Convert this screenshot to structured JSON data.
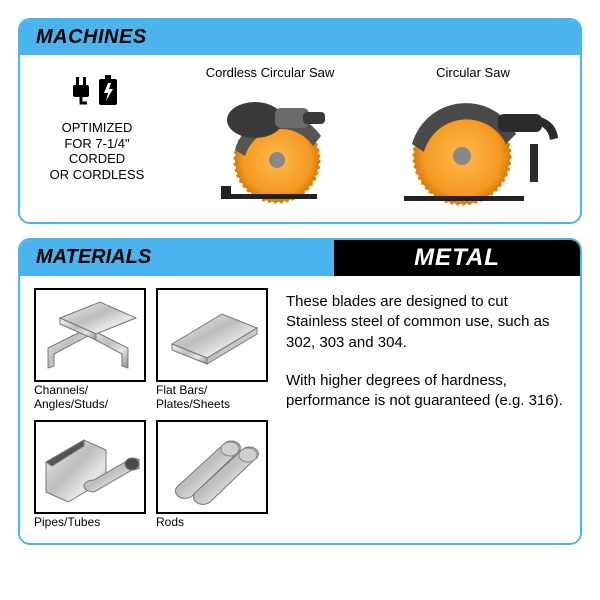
{
  "colors": {
    "panel_border": "#4bb4ef",
    "header_bg": "#4bb4ef",
    "header_text": "#000000",
    "metal_bg": "#000000",
    "metal_text": "#ffffff",
    "blade": "#f59a23",
    "blade_dark": "#d97f0a",
    "saw_body": "#3a3a3a",
    "saw_body_light": "#6b6b6b",
    "metal_light": "#e8e8e8",
    "metal_mid": "#b8b8b8",
    "metal_dark": "#7a7a7a"
  },
  "machines": {
    "title": "MACHINES",
    "optimized_lines": "OPTIMIZED\nFOR 7-1/4\"\nCORDED\nOR CORDLESS",
    "saws": [
      {
        "label": "Cordless Circular Saw"
      },
      {
        "label": "Circular Saw"
      }
    ]
  },
  "materials": {
    "title": "MATERIALS",
    "category": "METAL",
    "items": [
      {
        "label": "Channels/\nAngles/Studs/",
        "shape": "channels"
      },
      {
        "label": "Flat Bars/\nPlates/Sheets",
        "shape": "plates"
      },
      {
        "label": "Pipes/Tubes",
        "shape": "pipes"
      },
      {
        "label": "Rods",
        "shape": "rods"
      }
    ],
    "description_p1": "These blades are designed to cut Stainless steel of common use, such as 302, 303 and 304.",
    "description_p2": "With higher degrees of hardness, performance is not guaranteed (e.g. 316)."
  }
}
